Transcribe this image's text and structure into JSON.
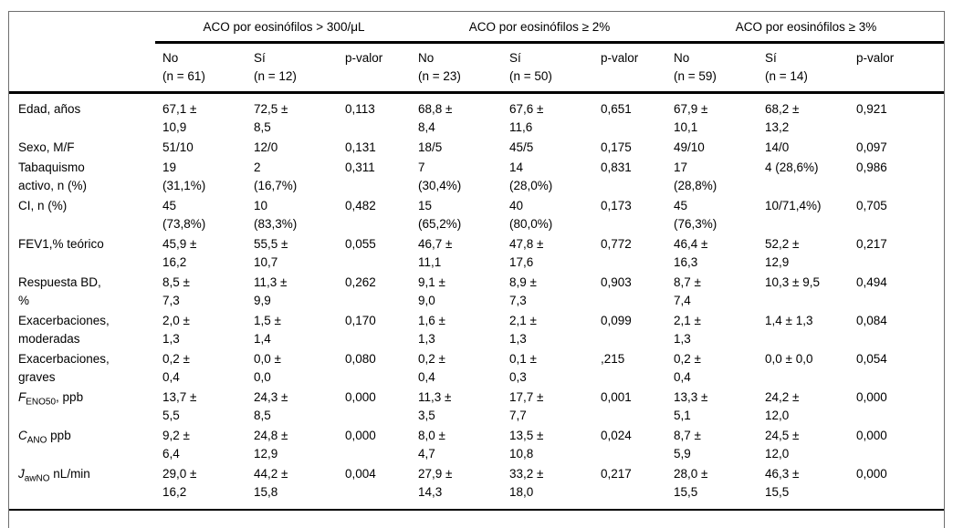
{
  "table": {
    "groups": [
      {
        "title": "ACO por eosinófilos > 300/μL"
      },
      {
        "title": "ACO por eosinófilos ≥ 2%"
      },
      {
        "title": "ACO por eosinófilos ≥ 3%"
      }
    ],
    "subheaders": [
      "No\n(n = 61)",
      "Sí\n(n = 12)",
      "p-valor",
      "No\n(n = 23)",
      "Sí\n(n = 50)",
      "p-valor",
      "No\n(n = 59)",
      "Sí\n(n = 14)",
      "p-valor"
    ],
    "rows": [
      {
        "label": "Edad, años",
        "cells": [
          "67,1 ±\n10,9",
          "72,5 ±\n8,5",
          "0,113",
          "68,8 ±\n8,4",
          "67,6 ±\n11,6",
          "0,651",
          "67,9 ±\n10,1",
          "68,2 ±\n13,2",
          "0,921"
        ]
      },
      {
        "label": "Sexo, M/F",
        "cells": [
          "51/10",
          "12/0",
          "0,131",
          "18/5",
          "45/5",
          "0,175",
          "49/10",
          "14/0",
          "0,097"
        ]
      },
      {
        "label": "Tabaquismo\nactivo, n (%)",
        "cells": [
          "19\n(31,1%)",
          "2\n(16,7%)",
          "0,311",
          "7\n(30,4%)",
          "14\n(28,0%)",
          "0,831",
          "17\n(28,8%)",
          "4 (28,6%)",
          "0,986"
        ]
      },
      {
        "label": "CI, n (%)",
        "cells": [
          "45\n(73,8%)",
          "10\n(83,3%)",
          "0,482",
          "15\n(65,2%)",
          "40\n(80,0%)",
          "0,173",
          "45\n(76,3%)",
          "10/71,4%)",
          "0,705"
        ]
      },
      {
        "label": "FEV1,% teórico",
        "cells": [
          "45,9 ±\n16,2",
          "55,5 ±\n10,7",
          "0,055",
          "46,7 ±\n11,1",
          "47,8 ±\n17,6",
          "0,772",
          "46,4 ±\n16,3",
          "52,2 ±\n12,9",
          "0,217"
        ]
      },
      {
        "label": "Respuesta BD,\n%",
        "cells": [
          "8,5 ±\n7,3",
          "11,3 ±\n9,9",
          "0,262",
          "9,1 ±\n9,0",
          "8,9 ±\n7,3",
          "0,903",
          "8,7 ±\n7,4",
          "10,3 ± 9,5",
          "0,494"
        ]
      },
      {
        "label": "Exacerbaciones,\nmoderadas",
        "cells": [
          "2,0 ±\n1,3",
          "1,5 ±\n1,4",
          "0,170",
          "1,6 ±\n1,3",
          "2,1 ±\n1,3",
          "0,099",
          "2,1 ±\n1,3",
          "1,4 ± 1,3",
          "0,084"
        ]
      },
      {
        "label": "Exacerbaciones,\ngraves",
        "cells": [
          "0,2 ±\n0,4",
          "0,0 ±\n0,0",
          "0,080",
          "0,2 ±\n0,4",
          "0,1 ±\n0,3",
          ",215",
          "0,2 ±\n0,4",
          "0,0 ± 0,0",
          "0,054"
        ]
      },
      {
        "label_prefix": "F",
        "label_sub": "ENO50",
        "label_suffix": ", ppb",
        "cells": [
          "13,7 ±\n5,5",
          "24,3 ±\n8,5",
          "0,000",
          "11,3 ±\n3,5",
          "17,7 ±\n7,7",
          "0,001",
          "13,3 ±\n5,1",
          "24,2 ±\n12,0",
          "0,000"
        ]
      },
      {
        "label_prefix": "C",
        "label_sub": "ANO",
        "label_suffix": " ppb",
        "cells": [
          "9,2 ±\n6,4",
          "24,8 ±\n12,9",
          "0,000",
          "8,0 ±\n4,7",
          "13,5 ±\n10,8",
          "0,024",
          "8,7 ±\n5,9",
          "24,5 ±\n12,0",
          "0,000"
        ]
      },
      {
        "label_prefix": "J",
        "label_sub": "awNO",
        "label_suffix": " nL/min",
        "cells": [
          "29,0 ±\n16,2",
          "44,2 ±\n15,8",
          "0,004",
          "27,9 ±\n14,3",
          "33,2 ±\n18,0",
          "0,217",
          "28,0 ±\n15,5",
          "46,3 ±\n15,5",
          "0,000"
        ]
      }
    ]
  }
}
